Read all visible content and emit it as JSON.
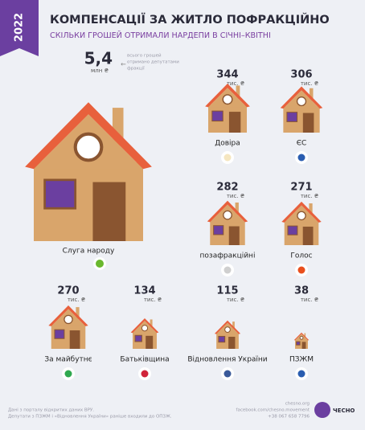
{
  "chart_data": {
    "type": "pictorial",
    "year": "2022",
    "title": "КОМПЕНСАЦІЇ ЗА ЖИТЛО ПОФРАКЦІЙНО",
    "subtitle": "СКІЛЬКИ ГРОШЕЙ ОТРИМАЛИ НАРДЕПИ В СІЧНІ–КВІТНІ",
    "main": {
      "name": "Слуга народу",
      "value": 5.4,
      "value_label": "5,4",
      "unit": "млн ₴",
      "note": [
        "всього грошей",
        "отримано депутатами",
        "фракції"
      ]
    },
    "unit": "тис. ₴",
    "categories": [
      "Довіра",
      "ЄС",
      "позафракційні",
      "Голос",
      "За майбутнє",
      "Батьківщина",
      "Відновлення України",
      "ПЗЖМ"
    ],
    "values": [
      344,
      306,
      282,
      271,
      270,
      134,
      115,
      38
    ],
    "colors": {
      "wall": "#d9a56b",
      "roof": "#e8603c",
      "door": "#8a5530",
      "window": "#6b3fa0"
    },
    "footer": {
      "notes": [
        "Дані з порталу відкритих даних ВРУ.",
        "Депутати з ПЗЖМ і «Відновлення України» раніше входили до ОПЗЖ."
      ],
      "contacts": [
        "chesno.org",
        "facebook.com/chesno.movement",
        "+38 067 658 7796"
      ],
      "logo": "ЧЕСНО"
    }
  }
}
